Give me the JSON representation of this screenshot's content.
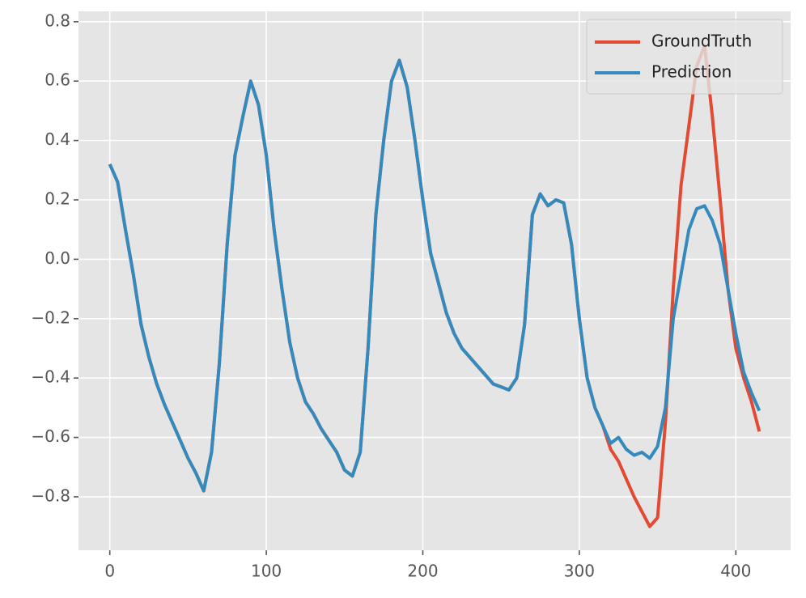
{
  "chart_data": {
    "type": "line",
    "x": [
      0,
      5,
      10,
      15,
      20,
      25,
      30,
      35,
      40,
      45,
      50,
      55,
      60,
      65,
      70,
      75,
      80,
      85,
      90,
      95,
      100,
      105,
      110,
      115,
      120,
      125,
      130,
      135,
      140,
      145,
      150,
      155,
      160,
      165,
      170,
      175,
      180,
      185,
      190,
      195,
      200,
      205,
      210,
      215,
      220,
      225,
      230,
      235,
      240,
      245,
      250,
      255,
      260,
      265,
      270,
      275,
      280,
      285,
      290,
      295,
      300,
      305,
      310,
      315,
      320,
      325,
      330,
      335,
      340,
      345,
      350,
      355,
      360,
      365,
      370,
      375,
      380,
      385,
      390,
      395,
      400,
      405,
      410,
      415
    ],
    "series": [
      {
        "name": "GroundTruth",
        "color": "#E24A33",
        "values": [
          0.32,
          0.26,
          0.1,
          -0.05,
          -0.22,
          -0.33,
          -0.42,
          -0.49,
          -0.55,
          -0.61,
          -0.67,
          -0.72,
          -0.78,
          -0.65,
          -0.35,
          0.05,
          0.35,
          0.48,
          0.6,
          0.52,
          0.35,
          0.1,
          -0.1,
          -0.28,
          -0.4,
          -0.48,
          -0.52,
          -0.57,
          -0.61,
          -0.65,
          -0.71,
          -0.73,
          -0.65,
          -0.3,
          0.15,
          0.4,
          0.6,
          0.67,
          0.58,
          0.4,
          0.2,
          0.02,
          -0.08,
          -0.18,
          -0.25,
          -0.3,
          -0.33,
          -0.36,
          -0.39,
          -0.42,
          -0.43,
          -0.44,
          -0.4,
          -0.22,
          0.15,
          0.22,
          0.18,
          0.2,
          0.19,
          0.05,
          -0.2,
          -0.4,
          -0.5,
          -0.56,
          -0.64,
          -0.68,
          -0.74,
          -0.8,
          -0.85,
          -0.9,
          -0.87,
          -0.55,
          -0.1,
          0.25,
          0.45,
          0.65,
          0.72,
          0.48,
          0.2,
          -0.1,
          -0.3,
          -0.4,
          -0.48,
          -0.58
        ]
      },
      {
        "name": "Prediction",
        "color": "#348ABD",
        "values": [
          0.32,
          0.26,
          0.1,
          -0.05,
          -0.22,
          -0.33,
          -0.42,
          -0.49,
          -0.55,
          -0.61,
          -0.67,
          -0.72,
          -0.78,
          -0.65,
          -0.35,
          0.05,
          0.35,
          0.48,
          0.6,
          0.52,
          0.35,
          0.1,
          -0.1,
          -0.28,
          -0.4,
          -0.48,
          -0.52,
          -0.57,
          -0.61,
          -0.65,
          -0.71,
          -0.73,
          -0.65,
          -0.3,
          0.15,
          0.4,
          0.6,
          0.67,
          0.58,
          0.4,
          0.2,
          0.02,
          -0.08,
          -0.18,
          -0.25,
          -0.3,
          -0.33,
          -0.36,
          -0.39,
          -0.42,
          -0.43,
          -0.44,
          -0.4,
          -0.22,
          0.15,
          0.22,
          0.18,
          0.2,
          0.19,
          0.05,
          -0.2,
          -0.4,
          -0.5,
          -0.56,
          -0.62,
          -0.6,
          -0.64,
          -0.66,
          -0.65,
          -0.67,
          -0.63,
          -0.5,
          -0.2,
          -0.05,
          0.1,
          0.17,
          0.18,
          0.13,
          0.05,
          -0.1,
          -0.25,
          -0.38,
          -0.45,
          -0.51
        ]
      }
    ],
    "xlim": [
      -20,
      435
    ],
    "ylim": [
      -0.98,
      0.835
    ],
    "xticks": [
      0,
      100,
      200,
      300,
      400
    ],
    "yticks": [
      {
        "value": -0.8,
        "label": "−0.8"
      },
      {
        "value": -0.6,
        "label": "−0.6"
      },
      {
        "value": -0.4,
        "label": "−0.4"
      },
      {
        "value": -0.2,
        "label": "−0.2"
      },
      {
        "value": 0,
        "label": "0.0"
      },
      0.2,
      0.4,
      0.6,
      0.8
    ],
    "grid": true,
    "legend": "upper right"
  }
}
